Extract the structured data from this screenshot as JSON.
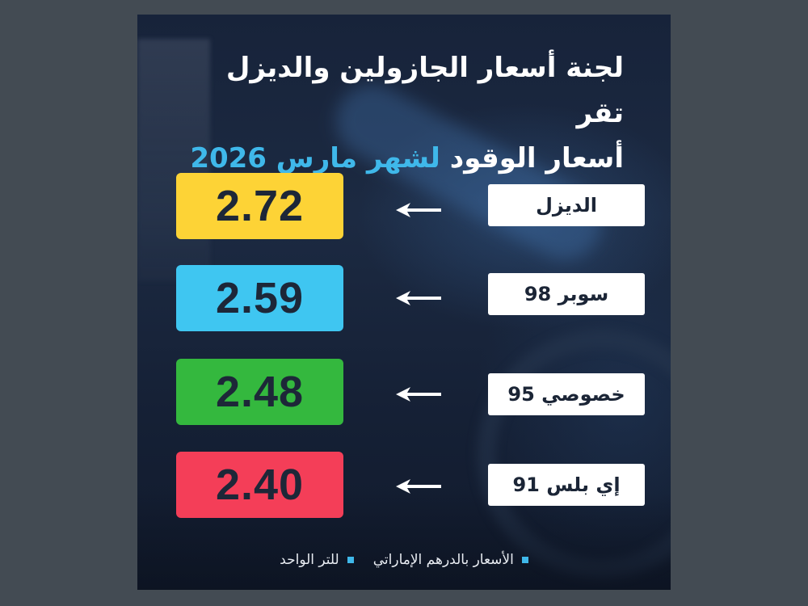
{
  "title": {
    "line1": "لجنة أسعار الجازولين والديزل تقر",
    "line2_prefix": "أسعار الوقود",
    "line2_accent": "لشهر مارس 2026"
  },
  "fuels": [
    {
      "label": "الديزل",
      "price": "2.72",
      "color": "#fdd336"
    },
    {
      "label": "سوبر 98",
      "price": "2.59",
      "color": "#3fc6f1"
    },
    {
      "label": "خصوصي 95",
      "price": "2.48",
      "color": "#34b83e"
    },
    {
      "label": "إي بلس 91",
      "price": "2.40",
      "color": "#f43e58"
    }
  ],
  "footer": {
    "note_currency": "الأسعار بالدرهم الإماراتي",
    "note_unit": "للتر الواحد"
  },
  "colors": {
    "accent": "#3fb8ea",
    "label_bg": "#ffffff",
    "price_text": "#1d2738"
  },
  "icons": {
    "row_arrow": "arrow-left-icon",
    "footer_bullet": "square-bullet-icon"
  }
}
